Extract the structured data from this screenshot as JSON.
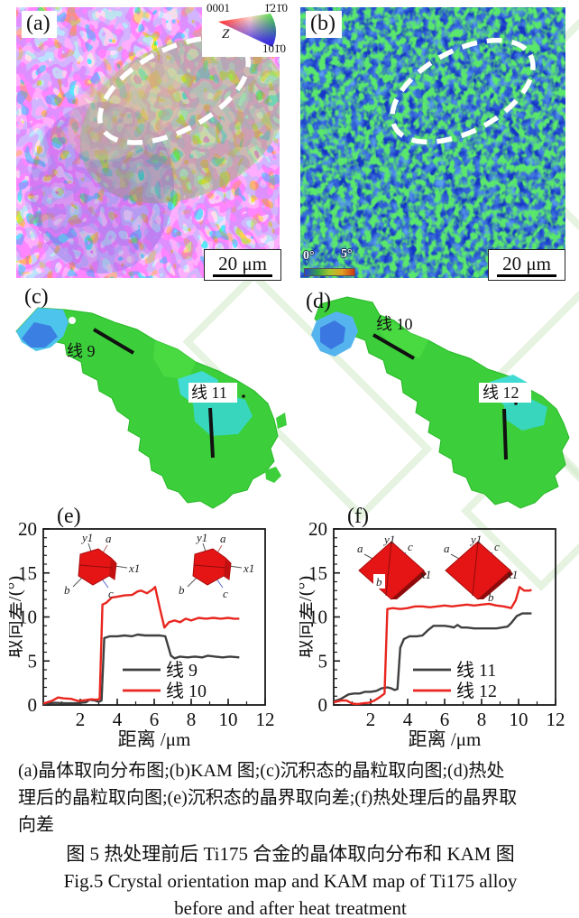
{
  "figure": {
    "panel_a": {
      "label": "(a)",
      "scale_bar": "20 μm",
      "color_key": {
        "label_top_left": "0001",
        "label_top_right": "1̄21̄0",
        "label_bottom": "101̄0",
        "axis_label": "Z"
      }
    },
    "panel_b": {
      "label": "(b)",
      "scale_bar": "20 μm",
      "kam_min": "0°",
      "kam_max": "5°"
    },
    "panel_c": {
      "label": "(c)",
      "line_a": "线 9",
      "line_b": "线 11"
    },
    "panel_d": {
      "label": "(d)",
      "line_a": "线 10",
      "line_b": "线 12"
    },
    "panel_e": {
      "label": "(e)"
    },
    "panel_f": {
      "label": "(f)"
    },
    "crystal_axis_labels": {
      "y1": "y1",
      "a": "a",
      "x1": "x1",
      "b": "b",
      "c": "c"
    }
  },
  "caption": {
    "desc_line1": "(a)晶体取向分布图;(b)KAM 图;(c)沉积态的晶粒取向图;(d)热处",
    "desc_line2": "理后的晶粒取向图;(e)沉积态的晶界取向差;(f)热处理后的晶界取",
    "desc_line3": "向差",
    "title_zh": "图 5  热处理前后 Ti175 合金的晶体取向分布和 KAM 图",
    "title_en_line1": "Fig.5  Crystal orientation map and KAM map of Ti175 alloy",
    "title_en_line2": "before and after heat treatment"
  },
  "chart_data": [
    {
      "id": "e",
      "type": "line",
      "xlabel": "距离 /μm",
      "ylabel": "取向差/(°)",
      "xlim": [
        0,
        12
      ],
      "ylim": [
        0,
        20
      ],
      "xticks": [
        2,
        4,
        6,
        8,
        10,
        12
      ],
      "yticks": [
        0,
        5,
        10,
        15,
        20
      ],
      "grid": false,
      "legend_position": "lower right",
      "series": [
        {
          "name": "线 9",
          "color": "#3f3f3f",
          "points": [
            [
              0,
              0.1
            ],
            [
              0.6,
              0.25
            ],
            [
              1.2,
              0.2
            ],
            [
              1.8,
              0.2
            ],
            [
              2.3,
              0.3
            ],
            [
              2.5,
              0.6
            ],
            [
              2.8,
              0.5
            ],
            [
              3.0,
              0.35
            ],
            [
              3.15,
              0.5
            ],
            [
              3.3,
              7.6
            ],
            [
              3.6,
              7.8
            ],
            [
              4.0,
              7.8
            ],
            [
              4.4,
              7.9
            ],
            [
              4.8,
              7.8
            ],
            [
              5.1,
              8.0
            ],
            [
              5.5,
              7.9
            ],
            [
              5.9,
              7.9
            ],
            [
              6.3,
              7.9
            ],
            [
              6.6,
              7.8
            ],
            [
              6.9,
              5.6
            ],
            [
              7.1,
              5.3
            ],
            [
              7.4,
              5.5
            ],
            [
              7.8,
              5.4
            ],
            [
              8.2,
              5.5
            ],
            [
              8.6,
              5.4
            ],
            [
              8.9,
              5.6
            ],
            [
              9.3,
              5.5
            ],
            [
              9.7,
              5.4
            ],
            [
              10.1,
              5.5
            ],
            [
              10.6,
              5.4
            ]
          ]
        },
        {
          "name": "线 10",
          "color": "#e8261f",
          "points": [
            [
              0,
              0.15
            ],
            [
              0.5,
              0.5
            ],
            [
              0.8,
              0.85
            ],
            [
              1.1,
              0.75
            ],
            [
              1.5,
              0.7
            ],
            [
              1.9,
              0.45
            ],
            [
              2.3,
              0.55
            ],
            [
              2.6,
              0.65
            ],
            [
              2.9,
              0.6
            ],
            [
              3.05,
              0.7
            ],
            [
              3.2,
              11.4
            ],
            [
              3.4,
              11.6
            ],
            [
              3.7,
              12.2
            ],
            [
              4.0,
              12.3
            ],
            [
              4.4,
              12.45
            ],
            [
              4.8,
              12.5
            ],
            [
              5.1,
              12.9
            ],
            [
              5.3,
              13.0
            ],
            [
              5.6,
              12.7
            ],
            [
              5.9,
              13.1
            ],
            [
              6.05,
              13.4
            ],
            [
              6.3,
              11.0
            ],
            [
              6.55,
              8.8
            ],
            [
              6.8,
              9.4
            ],
            [
              7.1,
              9.6
            ],
            [
              7.4,
              9.4
            ],
            [
              7.7,
              9.8
            ],
            [
              8.0,
              9.6
            ],
            [
              8.4,
              9.9
            ],
            [
              8.8,
              9.8
            ],
            [
              9.2,
              9.9
            ],
            [
              9.6,
              9.8
            ],
            [
              10.0,
              9.9
            ],
            [
              10.3,
              9.8
            ],
            [
              10.6,
              9.8
            ]
          ]
        }
      ]
    },
    {
      "id": "f",
      "type": "line",
      "xlabel": "距离 /μm",
      "ylabel": "取向差/(°)",
      "xlim": [
        0,
        12
      ],
      "ylim": [
        0,
        20
      ],
      "xticks": [
        2,
        4,
        6,
        8,
        10,
        12
      ],
      "yticks": [
        0,
        5,
        10,
        15,
        20
      ],
      "grid": false,
      "legend_position": "lower right",
      "series": [
        {
          "name": "线 11",
          "color": "#3f3f3f",
          "points": [
            [
              0,
              0.4
            ],
            [
              0.4,
              0.7
            ],
            [
              0.8,
              1.2
            ],
            [
              1.1,
              1.3
            ],
            [
              1.4,
              1.3
            ],
            [
              1.7,
              1.5
            ],
            [
              2.0,
              1.5
            ],
            [
              2.3,
              1.6
            ],
            [
              2.6,
              1.9
            ],
            [
              2.9,
              2.0
            ],
            [
              3.1,
              1.9
            ],
            [
              3.3,
              1.7
            ],
            [
              3.45,
              1.8
            ],
            [
              3.6,
              6.5
            ],
            [
              3.8,
              7.5
            ],
            [
              4.1,
              7.8
            ],
            [
              4.5,
              7.8
            ],
            [
              4.8,
              7.9
            ],
            [
              5.1,
              8.5
            ],
            [
              5.4,
              9.0
            ],
            [
              5.7,
              9.0
            ],
            [
              6.0,
              9.0
            ],
            [
              6.3,
              8.9
            ],
            [
              6.5,
              8.8
            ],
            [
              6.7,
              9.1
            ],
            [
              6.9,
              8.8
            ],
            [
              7.2,
              8.8
            ],
            [
              7.6,
              8.7
            ],
            [
              8.0,
              8.7
            ],
            [
              8.4,
              8.7
            ],
            [
              8.8,
              8.7
            ],
            [
              9.1,
              8.8
            ],
            [
              9.4,
              8.9
            ],
            [
              9.6,
              9.3
            ],
            [
              9.9,
              10.1
            ],
            [
              10.2,
              10.4
            ],
            [
              10.5,
              10.4
            ],
            [
              10.7,
              10.4
            ]
          ]
        },
        {
          "name": "线 12",
          "color": "#e8261f",
          "points": [
            [
              0,
              0.3
            ],
            [
              0.4,
              0.5
            ],
            [
              0.7,
              0.5
            ],
            [
              1.0,
              0.15
            ],
            [
              1.3,
              0.1
            ],
            [
              1.6,
              0.2
            ],
            [
              1.9,
              0.25
            ],
            [
              2.2,
              0.5
            ],
            [
              2.5,
              0.9
            ],
            [
              2.75,
              1.3
            ],
            [
              2.9,
              10.9
            ],
            [
              3.2,
              11.0
            ],
            [
              3.6,
              10.9
            ],
            [
              4.0,
              11.0
            ],
            [
              4.4,
              11.2
            ],
            [
              4.8,
              11.2
            ],
            [
              5.2,
              11.1
            ],
            [
              5.6,
              11.2
            ],
            [
              6.0,
              11.3
            ],
            [
              6.4,
              11.2
            ],
            [
              6.8,
              11.3
            ],
            [
              7.2,
              11.4
            ],
            [
              7.6,
              11.3
            ],
            [
              8.0,
              11.4
            ],
            [
              8.4,
              11.5
            ],
            [
              8.8,
              11.3
            ],
            [
              9.2,
              11.2
            ],
            [
              9.6,
              11.0
            ],
            [
              9.85,
              11.9
            ],
            [
              10.05,
              13.4
            ],
            [
              10.3,
              13.0
            ],
            [
              10.6,
              13.0
            ],
            [
              10.7,
              13.1
            ]
          ]
        }
      ]
    }
  ]
}
